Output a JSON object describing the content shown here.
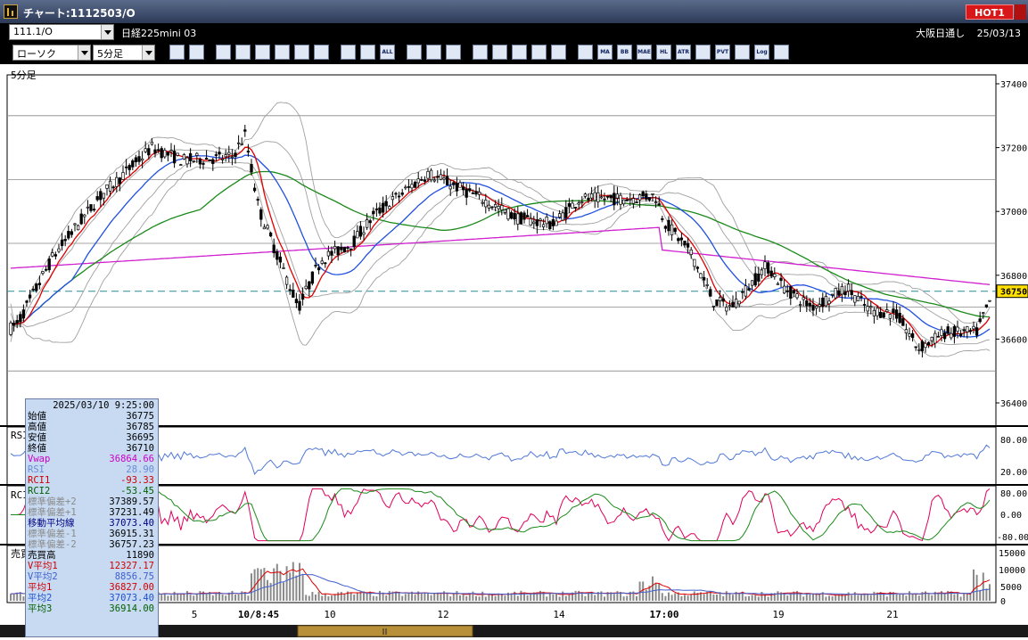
{
  "window": {
    "title": "チャート:1112503/O",
    "hot_label": "HOT1"
  },
  "instrument": {
    "code": "111.1/O",
    "name": "日経225mini 03",
    "session": "大阪日通し",
    "date": "25/03/13"
  },
  "chart_selectors": {
    "chart_type": "ローソク",
    "interval": "5分足"
  },
  "toolbar_icons": [
    "zoom-icon",
    "bar-icon",
    "pen-icon",
    "line-icon",
    "cursor-icon",
    "undo-icon",
    "document-icon",
    "trash-icon",
    "candle-icon",
    "candle-alt-icon",
    "all-icon",
    "settings-icon",
    "wrench-icon",
    "palette-icon",
    "export-icon",
    "magnify-icon",
    "indicator-icon",
    "cross-icon",
    "disabled-icon",
    "vwap-icon",
    "ma-icon",
    "bb-icon",
    "mae-icon",
    "hl-icon",
    "atr-icon",
    "ichimoku-icon",
    "pvt-icon",
    "box-icon",
    "log-icon",
    "exit-icon"
  ],
  "toolbar_labels": {
    "all": "ALL",
    "ma": "MA",
    "bb": "BB",
    "mae": "MAE",
    "hl": "HL",
    "atr": "ATR",
    "pvt": "PVT",
    "log": "Log"
  },
  "panels": {
    "price": {
      "label": "5分足",
      "ticks": [
        "37400",
        "37200",
        "37000",
        "36800",
        "36600",
        "36400"
      ],
      "current_price": "36750"
    },
    "rsi": {
      "label": "RSI",
      "ticks": [
        "80.00",
        "20.00"
      ]
    },
    "rci": {
      "label": "RCI",
      "ticks": [
        "80.00",
        "0.00",
        "-80.00"
      ]
    },
    "volume": {
      "label": "売買高",
      "ticks": [
        "15000",
        "10000",
        "5000",
        "0"
      ]
    }
  },
  "x_axis": [
    "5",
    "10/8:45",
    "10",
    "12",
    "14",
    "17:00",
    "19",
    "21"
  ],
  "info": {
    "datetime": "2025/03/10 9:25:00",
    "rows": [
      {
        "label": "始値",
        "value": "36775",
        "color": "#000000"
      },
      {
        "label": "高値",
        "value": "36785",
        "color": "#000000"
      },
      {
        "label": "安値",
        "value": "36695",
        "color": "#000000"
      },
      {
        "label": "終値",
        "value": "36710",
        "color": "#000000"
      },
      {
        "label": "Vwap",
        "value": "36864.66",
        "color": "#cc00cc"
      },
      {
        "label": "RSI",
        "value": "28.90",
        "color": "#6a8ad8"
      },
      {
        "label": "RCI1",
        "value": "-93.33",
        "color": "#d00000"
      },
      {
        "label": "RCI2",
        "value": "-53.45",
        "color": "#006000"
      },
      {
        "label": "標準偏差+2",
        "value": "37389.57",
        "color": "#8a8a8a"
      },
      {
        "label": "標準偏差+1",
        "value": "37231.49",
        "color": "#8a8a8a"
      },
      {
        "label": "移動平均線",
        "value": "37073.40",
        "color": "#000080"
      },
      {
        "label": "標準偏差-1",
        "value": "36915.31",
        "color": "#8a8a8a"
      },
      {
        "label": "標準偏差-2",
        "value": "36757.23",
        "color": "#8a8a8a"
      },
      {
        "label": "売買高",
        "value": "11890",
        "color": "#000000"
      },
      {
        "label": "V平均1",
        "value": "12327.17",
        "color": "#d00000"
      },
      {
        "label": "V平均2",
        "value": "8856.75",
        "color": "#4060d0"
      },
      {
        "label": "平均1",
        "value": "36827.00",
        "color": "#d00000"
      },
      {
        "label": "平均2",
        "value": "37073.40",
        "color": "#2050d0"
      },
      {
        "label": "平均3",
        "value": "36914.00",
        "color": "#006000"
      }
    ]
  },
  "colors": {
    "up": "#ffffff",
    "down": "#000000",
    "ma_short": "#e00000",
    "ma_mid": "#2050e0",
    "ma_long": "#1a8a1a",
    "vwap": "#d020d0",
    "bb": "#a0a0a0",
    "rsi": "#5078d8",
    "rci1": "#e0005a",
    "rci2": "#1a8a1a"
  }
}
